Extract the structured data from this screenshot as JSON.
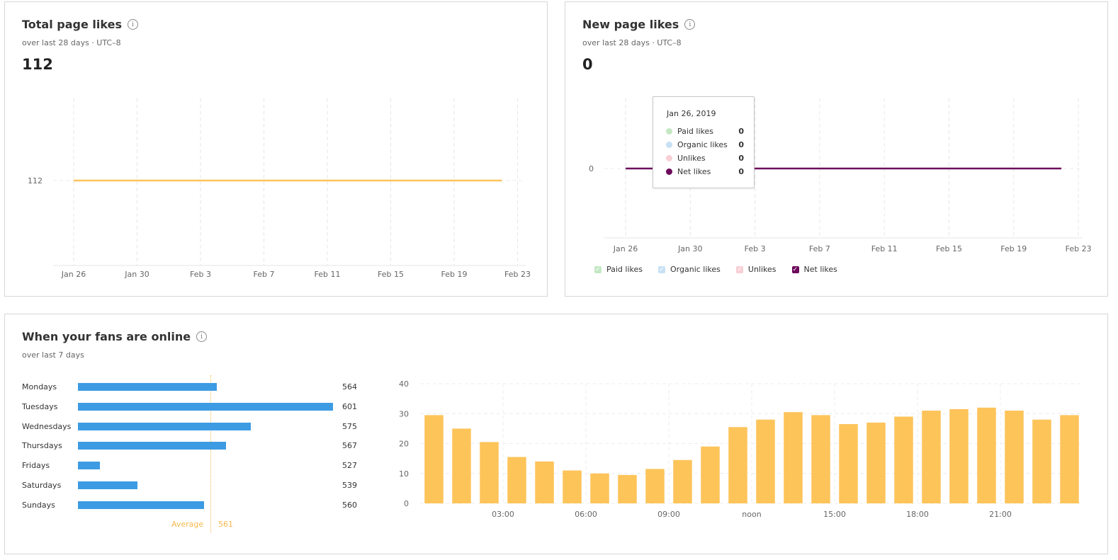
{
  "total_likes": {
    "title": "Total page likes",
    "subtitle": "over last 28 days · UTC–8",
    "value": "112",
    "x_ticks": [
      "Jan 26",
      "Jan 30",
      "Feb 3",
      "Feb 7",
      "Feb 11",
      "Feb 15",
      "Feb 19",
      "Feb 23"
    ],
    "y_label": "112"
  },
  "new_likes": {
    "title": "New page likes",
    "subtitle": "over last 28 days · UTC–8",
    "value": "0",
    "x_ticks": [
      "Jan 26",
      "Jan 30",
      "Feb 3",
      "Feb 7",
      "Feb 11",
      "Feb 15",
      "Feb 19",
      "Feb 23"
    ],
    "y_label": "0",
    "tooltip": {
      "date": "Jan 26, 2019",
      "rows": [
        {
          "label": "Paid likes",
          "value": "0",
          "color": "#c4e8c4"
        },
        {
          "label": "Organic likes",
          "value": "0",
          "color": "#c7e1f4"
        },
        {
          "label": "Unlikes",
          "value": "0",
          "color": "#f8cfd5"
        },
        {
          "label": "Net likes",
          "value": "0",
          "color": "#6d0a5c"
        }
      ]
    },
    "legend": [
      {
        "label": "Paid likes",
        "color": "#c4e8c4"
      },
      {
        "label": "Organic likes",
        "color": "#c7e1f4"
      },
      {
        "label": "Unlikes",
        "color": "#f8cfd5"
      },
      {
        "label": "Net likes",
        "color": "#6d0a5c"
      }
    ]
  },
  "fans_online": {
    "title": "When your fans are online",
    "subtitle": "over last 7 days",
    "days": [
      {
        "label": "Mondays",
        "value": 564
      },
      {
        "label": "Tuesdays",
        "value": 601
      },
      {
        "label": "Wednesdays",
        "value": 575
      },
      {
        "label": "Thursdays",
        "value": 567
      },
      {
        "label": "Fridays",
        "value": 527
      },
      {
        "label": "Saturdays",
        "value": 539
      },
      {
        "label": "Sundays",
        "value": 560
      }
    ],
    "average_label": "Average",
    "average_value": "561",
    "hourly_ticks": [
      "03:00",
      "06:00",
      "09:00",
      "noon",
      "15:00",
      "18:00",
      "21:00"
    ]
  },
  "chart_data": [
    {
      "type": "line",
      "x": [
        "Jan 26",
        "Jan 30",
        "Feb 3",
        "Feb 7",
        "Feb 11",
        "Feb 15",
        "Feb 19",
        "Feb 23"
      ],
      "series": [
        {
          "values": [
            112,
            112,
            112,
            112,
            112,
            112,
            112,
            112
          ],
          "color": "#fdc45a"
        }
      ],
      "yticks": [
        112
      ]
    },
    {
      "type": "line",
      "x": [
        "Jan 26",
        "Jan 30",
        "Feb 3",
        "Feb 7",
        "Feb 11",
        "Feb 15",
        "Feb 19",
        "Feb 23"
      ],
      "series": [
        {
          "name": "Net likes",
          "values": [
            0,
            0,
            0,
            0,
            0,
            0,
            0,
            0
          ],
          "color": "#6d0a5c"
        }
      ],
      "yticks": [
        0
      ]
    },
    {
      "type": "bar",
      "orientation": "horizontal",
      "categories": [
        "Mondays",
        "Tuesdays",
        "Wednesdays",
        "Thursdays",
        "Fridays",
        "Saturdays",
        "Sundays"
      ],
      "values": [
        564,
        601,
        575,
        567,
        527,
        539,
        560
      ],
      "average": 561,
      "color": "#3d9be3"
    },
    {
      "type": "bar",
      "categories": [
        "00:00",
        "01:00",
        "02:00",
        "03:00",
        "04:00",
        "05:00",
        "06:00",
        "07:00",
        "08:00",
        "09:00",
        "10:00",
        "11:00",
        "noon",
        "13:00",
        "14:00",
        "15:00",
        "16:00",
        "17:00",
        "18:00",
        "19:00",
        "20:00",
        "21:00",
        "22:00",
        "23:00"
      ],
      "values": [
        29.5,
        25,
        20.5,
        15.5,
        14,
        11,
        10,
        9.5,
        11.5,
        14.5,
        19,
        25.5,
        28,
        30.5,
        29.5,
        26.5,
        27,
        29,
        31,
        31.5,
        32,
        31,
        28,
        29.5
      ],
      "yticks": [
        0,
        10,
        20,
        30,
        40
      ],
      "ylim": [
        0,
        40
      ],
      "xticks": [
        "03:00",
        "06:00",
        "09:00",
        "noon",
        "15:00",
        "18:00",
        "21:00"
      ],
      "color": "#fdc45a"
    }
  ]
}
